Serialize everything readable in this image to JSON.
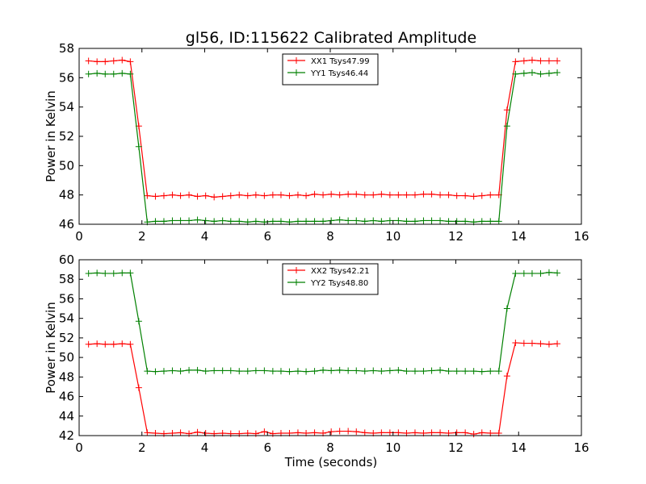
{
  "figure": {
    "title": "gl56, ID:115622 Calibrated Amplitude",
    "xlabel": "Time (seconds)"
  },
  "chart_data": [
    {
      "type": "line",
      "title": "gl56, ID:115622 Calibrated Amplitude",
      "xlabel": "",
      "ylabel": "Power in Kelvin",
      "xlim": [
        0,
        16
      ],
      "ylim": [
        46,
        58
      ],
      "xticks": [
        0,
        2,
        4,
        6,
        8,
        10,
        12,
        14,
        16
      ],
      "yticks": [
        46,
        48,
        50,
        52,
        54,
        56,
        58
      ],
      "grid": false,
      "legend": "top-center",
      "series": [
        {
          "name": "XX1 Tsys47.99",
          "color": "#ff0000",
          "x": [
            0.3,
            0.57,
            0.83,
            1.1,
            1.37,
            1.63,
            1.9,
            2.17,
            2.43,
            2.7,
            2.97,
            3.23,
            3.5,
            3.77,
            4.03,
            4.3,
            4.57,
            4.83,
            5.1,
            5.37,
            5.63,
            5.9,
            6.17,
            6.43,
            6.7,
            6.97,
            7.23,
            7.5,
            7.77,
            8.03,
            8.3,
            8.57,
            8.83,
            9.1,
            9.37,
            9.63,
            9.9,
            10.17,
            10.43,
            10.7,
            10.97,
            11.23,
            11.5,
            11.77,
            12.03,
            12.3,
            12.57,
            12.83,
            13.1,
            13.37,
            13.63,
            13.9,
            14.17,
            14.43,
            14.7,
            14.97,
            15.23
          ],
          "y": [
            57.15,
            57.1,
            57.1,
            57.15,
            57.2,
            57.1,
            52.7,
            47.95,
            47.9,
            47.95,
            48.0,
            47.95,
            48.0,
            47.9,
            47.95,
            47.85,
            47.9,
            47.95,
            48.0,
            47.95,
            48.0,
            47.95,
            48.0,
            48.0,
            47.95,
            48.0,
            47.95,
            48.05,
            48.0,
            48.05,
            48.0,
            48.05,
            48.05,
            48.0,
            48.0,
            48.05,
            48.0,
            48.0,
            48.0,
            48.0,
            48.05,
            48.05,
            48.0,
            48.0,
            47.95,
            47.95,
            47.9,
            47.95,
            48.0,
            48.0,
            53.8,
            57.1,
            57.15,
            57.2,
            57.15,
            57.15,
            57.15
          ]
        },
        {
          "name": "YY1 Tsys46.44",
          "color": "#008000",
          "x": [
            0.3,
            0.57,
            0.83,
            1.1,
            1.37,
            1.63,
            1.9,
            2.17,
            2.43,
            2.7,
            2.97,
            3.23,
            3.5,
            3.77,
            4.03,
            4.3,
            4.57,
            4.83,
            5.1,
            5.37,
            5.63,
            5.9,
            6.17,
            6.43,
            6.7,
            6.97,
            7.23,
            7.5,
            7.77,
            8.03,
            8.3,
            8.57,
            8.83,
            9.1,
            9.37,
            9.63,
            9.9,
            10.17,
            10.43,
            10.7,
            10.97,
            11.23,
            11.5,
            11.77,
            12.03,
            12.3,
            12.57,
            12.83,
            13.1,
            13.37,
            13.63,
            13.9,
            14.17,
            14.43,
            14.7,
            14.97,
            15.23
          ],
          "y": [
            56.25,
            56.3,
            56.25,
            56.25,
            56.3,
            56.25,
            51.3,
            46.15,
            46.2,
            46.2,
            46.25,
            46.25,
            46.25,
            46.3,
            46.25,
            46.2,
            46.25,
            46.2,
            46.2,
            46.15,
            46.2,
            46.15,
            46.2,
            46.2,
            46.15,
            46.2,
            46.2,
            46.2,
            46.2,
            46.25,
            46.3,
            46.25,
            46.25,
            46.2,
            46.25,
            46.2,
            46.25,
            46.25,
            46.2,
            46.2,
            46.25,
            46.25,
            46.25,
            46.2,
            46.2,
            46.2,
            46.15,
            46.2,
            46.2,
            46.2,
            52.7,
            56.25,
            56.3,
            56.35,
            56.25,
            56.3,
            56.35
          ]
        }
      ]
    },
    {
      "type": "line",
      "title": "",
      "xlabel": "Time (seconds)",
      "ylabel": "Power in Kelvin",
      "xlim": [
        0,
        16
      ],
      "ylim": [
        42,
        60
      ],
      "xticks": [
        0,
        2,
        4,
        6,
        8,
        10,
        12,
        14,
        16
      ],
      "yticks": [
        42,
        44,
        46,
        48,
        50,
        52,
        54,
        56,
        58,
        60
      ],
      "grid": false,
      "legend": "top-center",
      "series": [
        {
          "name": "XX2 Tsys42.21",
          "color": "#ff0000",
          "x": [
            0.3,
            0.57,
            0.83,
            1.1,
            1.37,
            1.63,
            1.9,
            2.17,
            2.43,
            2.7,
            2.97,
            3.23,
            3.5,
            3.77,
            4.03,
            4.3,
            4.57,
            4.83,
            5.1,
            5.37,
            5.63,
            5.9,
            6.17,
            6.43,
            6.7,
            6.97,
            7.23,
            7.5,
            7.77,
            8.03,
            8.3,
            8.57,
            8.83,
            9.1,
            9.37,
            9.63,
            9.9,
            10.17,
            10.43,
            10.7,
            10.97,
            11.23,
            11.5,
            11.77,
            12.03,
            12.3,
            12.57,
            12.83,
            13.1,
            13.37,
            13.63,
            13.9,
            14.17,
            14.43,
            14.7,
            14.97,
            15.23
          ],
          "y": [
            51.35,
            51.4,
            51.35,
            51.35,
            51.4,
            51.35,
            46.9,
            42.3,
            42.25,
            42.2,
            42.25,
            42.3,
            42.2,
            42.35,
            42.25,
            42.2,
            42.25,
            42.2,
            42.2,
            42.25,
            42.2,
            42.4,
            42.2,
            42.25,
            42.25,
            42.3,
            42.25,
            42.3,
            42.25,
            42.4,
            42.45,
            42.45,
            42.4,
            42.3,
            42.25,
            42.3,
            42.3,
            42.3,
            42.25,
            42.3,
            42.25,
            42.3,
            42.3,
            42.25,
            42.3,
            42.3,
            42.15,
            42.3,
            42.25,
            42.25,
            48.1,
            51.5,
            51.45,
            51.45,
            51.4,
            51.35,
            51.4
          ]
        },
        {
          "name": "YY2 Tsys48.80",
          "color": "#008000",
          "x": [
            0.3,
            0.57,
            0.83,
            1.1,
            1.37,
            1.63,
            1.9,
            2.17,
            2.43,
            2.7,
            2.97,
            3.23,
            3.5,
            3.77,
            4.03,
            4.3,
            4.57,
            4.83,
            5.1,
            5.37,
            5.63,
            5.9,
            6.17,
            6.43,
            6.7,
            6.97,
            7.23,
            7.5,
            7.77,
            8.03,
            8.3,
            8.57,
            8.83,
            9.1,
            9.37,
            9.63,
            9.9,
            10.17,
            10.43,
            10.7,
            10.97,
            11.23,
            11.5,
            11.77,
            12.03,
            12.3,
            12.57,
            12.83,
            13.1,
            13.37,
            13.63,
            13.9,
            14.17,
            14.43,
            14.7,
            14.97,
            15.23
          ],
          "y": [
            58.6,
            58.65,
            58.6,
            58.6,
            58.65,
            58.65,
            53.7,
            48.6,
            48.55,
            48.6,
            48.65,
            48.6,
            48.7,
            48.7,
            48.6,
            48.65,
            48.65,
            48.65,
            48.6,
            48.6,
            48.65,
            48.65,
            48.6,
            48.6,
            48.55,
            48.6,
            48.55,
            48.6,
            48.7,
            48.65,
            48.7,
            48.65,
            48.65,
            48.6,
            48.65,
            48.6,
            48.65,
            48.7,
            48.6,
            48.6,
            48.6,
            48.65,
            48.7,
            48.6,
            48.6,
            48.6,
            48.6,
            48.55,
            48.6,
            48.6,
            55.0,
            58.6,
            58.6,
            58.6,
            58.6,
            58.7,
            58.65
          ]
        }
      ]
    }
  ]
}
